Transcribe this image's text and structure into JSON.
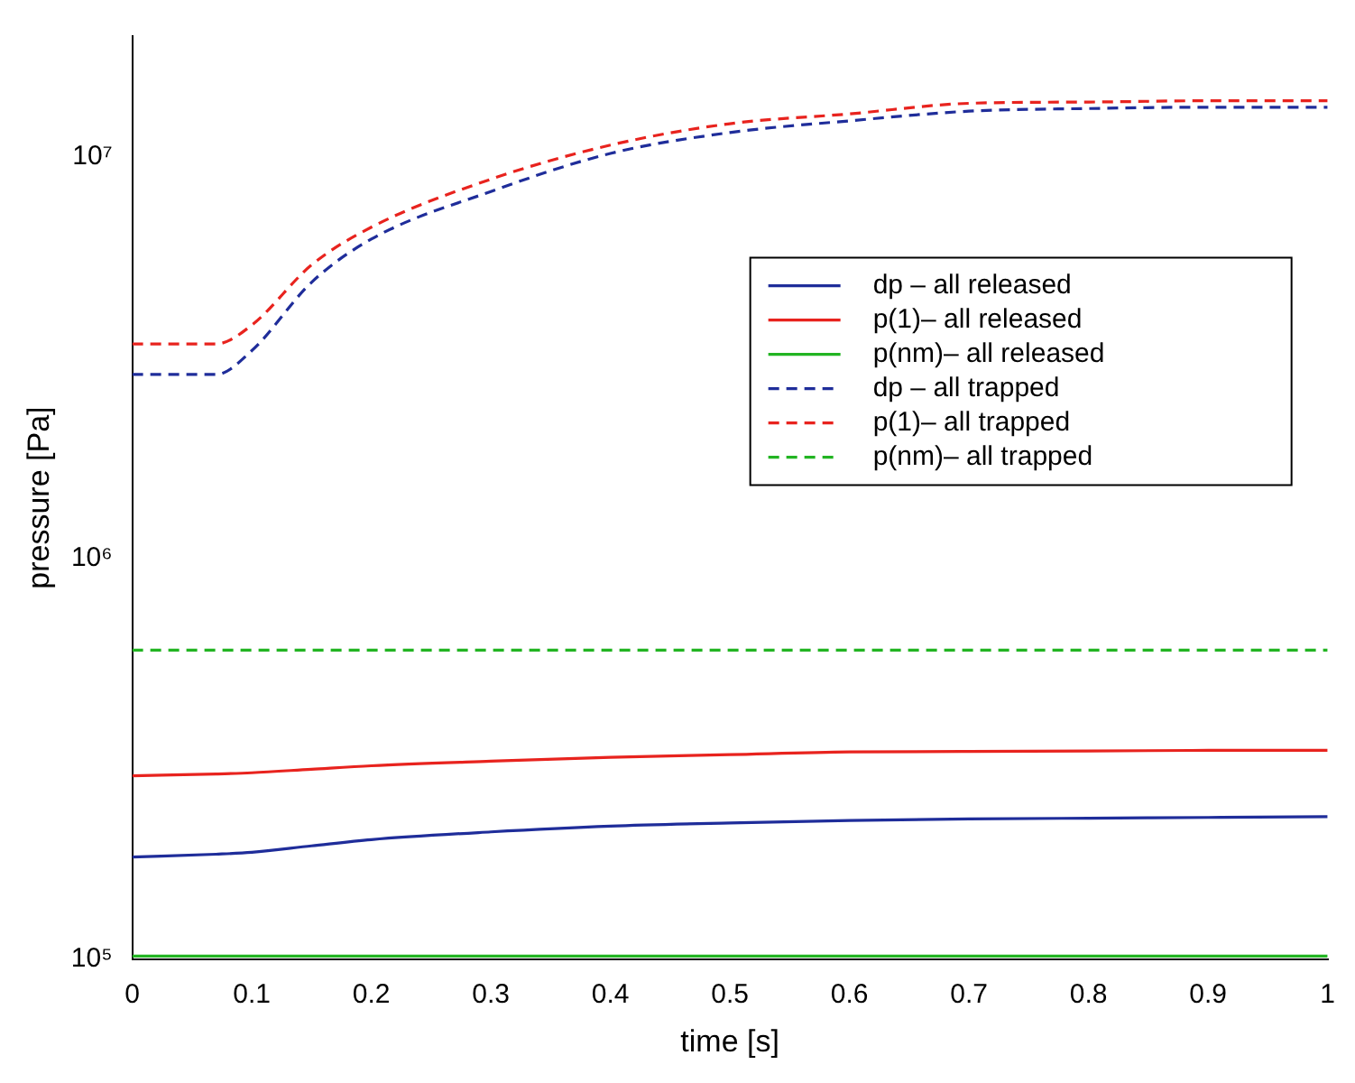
{
  "chart_data": {
    "type": "line",
    "xlabel": "time [s]",
    "ylabel": "pressure [Pa]",
    "log": "y",
    "xlim": [
      0,
      1
    ],
    "xticks": [
      0,
      0.1,
      0.2,
      0.3,
      0.4,
      0.5,
      0.6,
      0.7,
      0.8,
      0.9,
      1
    ],
    "ylim": [
      100000,
      20000000
    ],
    "yticks": [
      {
        "value": 100000,
        "label": "10⁵"
      },
      {
        "value": 1000000,
        "label": "10⁶"
      },
      {
        "value": 10000000,
        "label": "10⁷"
      }
    ],
    "grid": false,
    "legend": "right",
    "x": [
      0,
      0.07,
      0.1,
      0.15,
      0.2,
      0.3,
      0.4,
      0.5,
      0.6,
      0.7,
      0.8,
      0.9,
      1
    ],
    "series": [
      {
        "name": "dp – all released",
        "color": "#1f2d9a",
        "line_style": "solid",
        "values": [
          180000,
          183000,
          185000,
          192000,
          199000,
          208000,
          215000,
          219000,
          222000,
          224000,
          225000,
          226000,
          227000
        ]
      },
      {
        "name": "p(1)– all released",
        "color": "#e8231e",
        "line_style": "solid",
        "values": [
          287000,
          290000,
          292000,
          298000,
          304000,
          312000,
          319000,
          324000,
          329000,
          330000,
          331000,
          332000,
          332000
        ]
      },
      {
        "name": "p(nm)– all released",
        "color": "#22b422",
        "line_style": "solid",
        "values": [
          102000,
          102000,
          102000,
          102000,
          102000,
          102000,
          102000,
          102000,
          102000,
          102000,
          102000,
          102000,
          102000
        ]
      },
      {
        "name": "dp – all trapped",
        "color": "#1f2d9a",
        "line_style": "dashed",
        "values": [
          2870000,
          2870000,
          3290000,
          4870000,
          6240000,
          8200000,
          10200000,
          11500000,
          12300000,
          13000000,
          13200000,
          13300000,
          13300000
        ]
      },
      {
        "name": "p(1)– all trapped",
        "color": "#e8231e",
        "line_style": "dashed",
        "values": [
          3420000,
          3420000,
          3810000,
          5380000,
          6680000,
          8800000,
          10700000,
          12100000,
          12800000,
          13600000,
          13700000,
          13800000,
          13800000
        ]
      },
      {
        "name": "p(nm)– all trapped",
        "color": "#22b422",
        "line_style": "dashed",
        "values": [
          590000,
          590000,
          590000,
          590000,
          590000,
          590000,
          590000,
          590000,
          590000,
          590000,
          590000,
          590000,
          590000
        ]
      }
    ]
  }
}
